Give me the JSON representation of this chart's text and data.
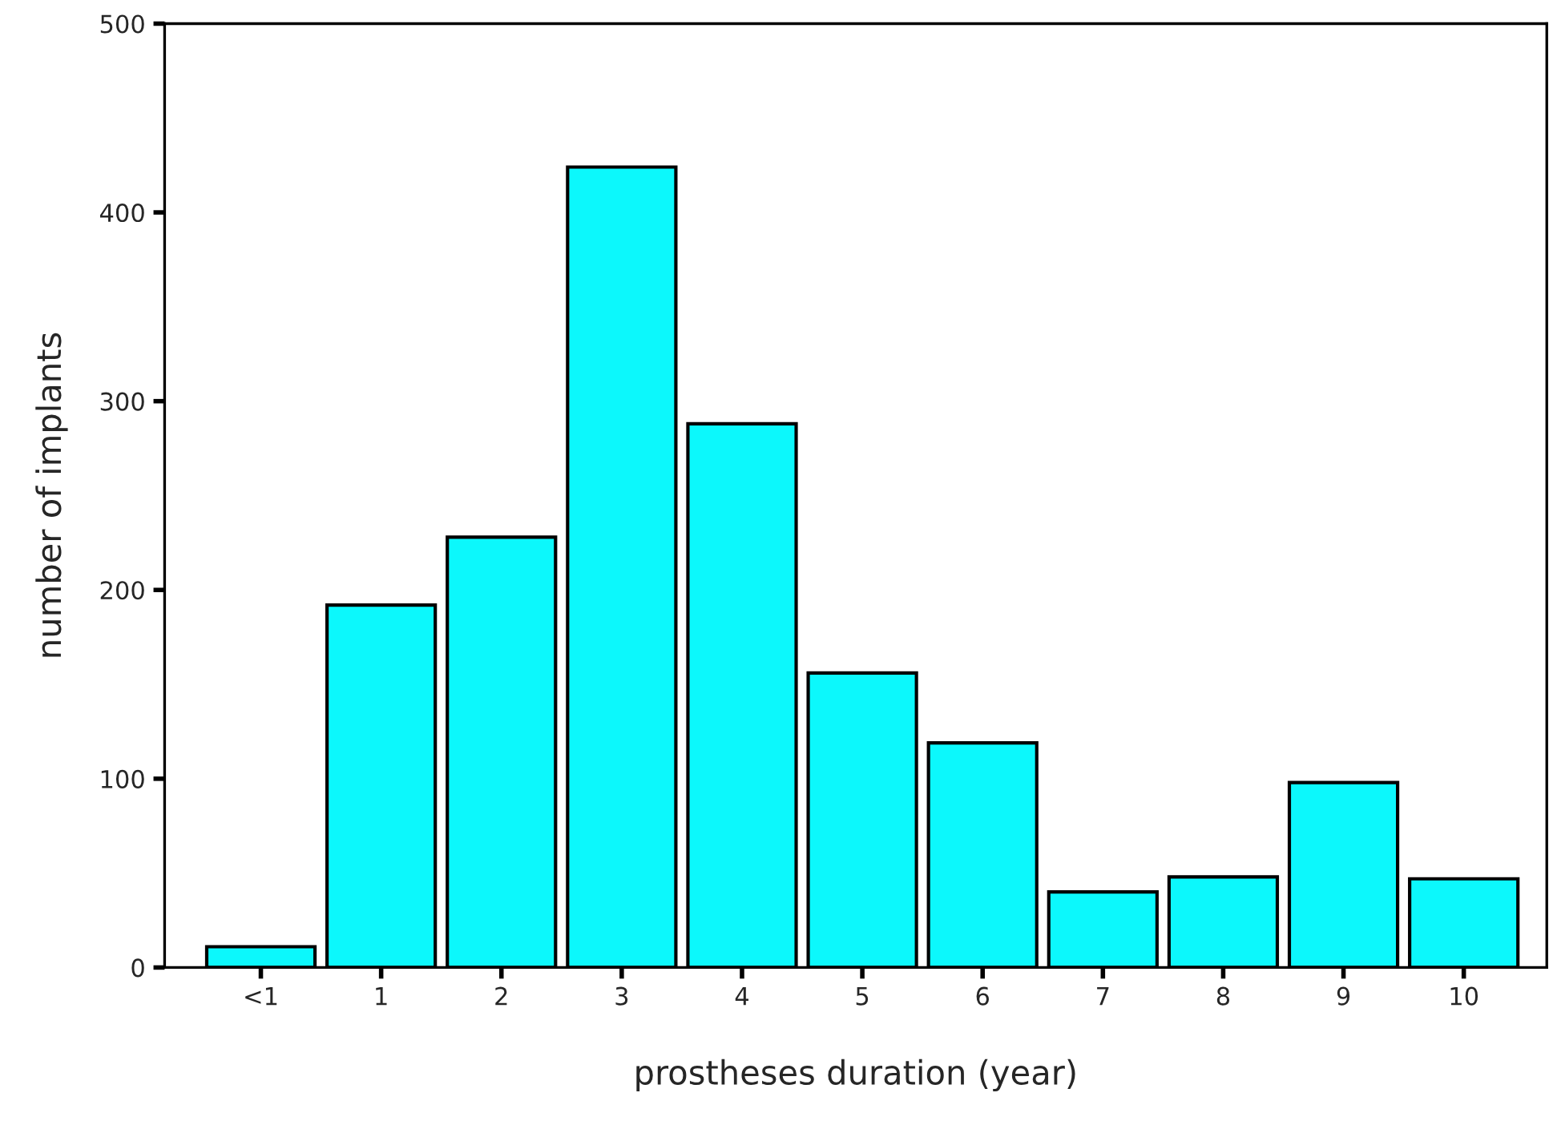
{
  "chart_data": {
    "type": "bar",
    "xlabel": "prostheses duration (year)",
    "ylabel": "number of implants",
    "categories": [
      "<1",
      "1",
      "2",
      "3",
      "4",
      "5",
      "6",
      "7",
      "8",
      "9",
      "10"
    ],
    "values": [
      11,
      192,
      228,
      424,
      288,
      156,
      119,
      40,
      48,
      98,
      47
    ],
    "color": "#0cf8fc",
    "ylim": [
      0,
      500
    ],
    "yticks": [
      0,
      100,
      200,
      300,
      400,
      500
    ],
    "grid": false,
    "legend": false
  }
}
